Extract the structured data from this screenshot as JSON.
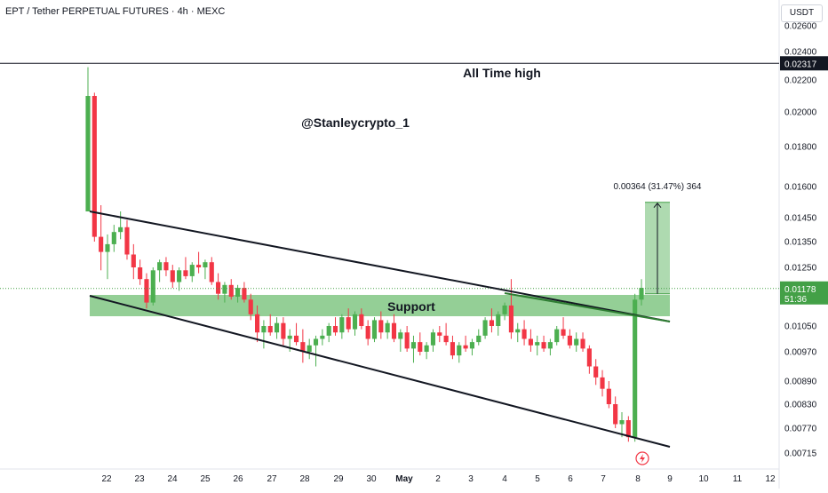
{
  "header": {
    "title": "EPT / Tether PERPETUAL FUTURES · 4h · MEXC",
    "currency": "USDT"
  },
  "chart_data": {
    "type": "candlestick",
    "symbol": "EPT / Tether PERPETUAL FUTURES",
    "interval": "4h",
    "exchange": "MEXC",
    "y_ticks": [
      "0.02600",
      "0.02400",
      "0.02200",
      "0.02000",
      "0.01800",
      "0.01600",
      "0.01450",
      "0.01350",
      "0.01250",
      "0.01050",
      "0.00970",
      "0.00890",
      "0.00830",
      "0.00770",
      "0.00715"
    ],
    "x_ticks": [
      "22",
      "23",
      "24",
      "25",
      "26",
      "27",
      "28",
      "29",
      "30",
      "May",
      "2",
      "3",
      "4",
      "5",
      "6",
      "7",
      "8",
      "9",
      "10",
      "11",
      "12"
    ],
    "all_time_high": "0.02317",
    "last_price": "0.01178",
    "countdown": "51:36",
    "annotations": {
      "ath_label": "All Time high",
      "watermark": "@Stanleycrypto_1",
      "support_label": "Support",
      "measure_label": "0.00364 (31.47%) 364"
    },
    "colors": {
      "up": "#4caf50",
      "down": "#f23645",
      "support_zone": "#81c784",
      "measure_zone": "#a5d6a7",
      "price_label_bg": "#43a047",
      "ath_label_bg": "#131722"
    },
    "candles": [
      [
        0.0148,
        0.0229,
        0.0148,
        0.021
      ],
      [
        0.021,
        0.0212,
        0.0135,
        0.0137
      ],
      [
        0.0137,
        0.0151,
        0.0124,
        0.0131
      ],
      [
        0.0131,
        0.0138,
        0.0121,
        0.0134
      ],
      [
        0.0134,
        0.0142,
        0.0131,
        0.0139
      ],
      [
        0.0139,
        0.0148,
        0.0136,
        0.0141
      ],
      [
        0.0141,
        0.0144,
        0.0128,
        0.013
      ],
      [
        0.013,
        0.0134,
        0.0121,
        0.0125
      ],
      [
        0.0125,
        0.0128,
        0.0119,
        0.0121
      ],
      [
        0.0121,
        0.0123,
        0.0111,
        0.0113
      ],
      [
        0.0113,
        0.0125,
        0.0112,
        0.0124
      ],
      [
        0.0124,
        0.0128,
        0.012,
        0.0127
      ],
      [
        0.0127,
        0.0129,
        0.0122,
        0.0124
      ],
      [
        0.0124,
        0.0126,
        0.0118,
        0.012
      ],
      [
        0.012,
        0.0125,
        0.0117,
        0.0124
      ],
      [
        0.0124,
        0.0129,
        0.0121,
        0.0122
      ],
      [
        0.0122,
        0.0127,
        0.012,
        0.0126
      ],
      [
        0.0126,
        0.0131,
        0.0123,
        0.0125
      ],
      [
        0.0125,
        0.0128,
        0.0121,
        0.0127
      ],
      [
        0.0127,
        0.0129,
        0.0119,
        0.012
      ],
      [
        0.012,
        0.0123,
        0.0114,
        0.0116
      ],
      [
        0.0116,
        0.012,
        0.0113,
        0.0119
      ],
      [
        0.0119,
        0.0121,
        0.0114,
        0.0115
      ],
      [
        0.0115,
        0.0119,
        0.0113,
        0.0118
      ],
      [
        0.0118,
        0.012,
        0.0113,
        0.0114
      ],
      [
        0.0114,
        0.0116,
        0.0107,
        0.0109
      ],
      [
        0.0109,
        0.0112,
        0.01,
        0.0103
      ],
      [
        0.0103,
        0.0107,
        0.0098,
        0.0105
      ],
      [
        0.0105,
        0.0109,
        0.0102,
        0.0103
      ],
      [
        0.0103,
        0.0108,
        0.0101,
        0.0106
      ],
      [
        0.0106,
        0.0108,
        0.0099,
        0.0101
      ],
      [
        0.0101,
        0.0104,
        0.0097,
        0.0102
      ],
      [
        0.0102,
        0.0106,
        0.0099,
        0.01
      ],
      [
        0.01,
        0.0104,
        0.0094,
        0.0097
      ],
      [
        0.0097,
        0.0101,
        0.0095,
        0.0099
      ],
      [
        0.0099,
        0.0102,
        0.0093,
        0.0101
      ],
      [
        0.0101,
        0.0104,
        0.0099,
        0.0102
      ],
      [
        0.0102,
        0.0106,
        0.01,
        0.0105
      ],
      [
        0.0105,
        0.0108,
        0.0102,
        0.0103
      ],
      [
        0.0103,
        0.0109,
        0.0101,
        0.0108
      ],
      [
        0.0108,
        0.0111,
        0.0103,
        0.0104
      ],
      [
        0.0104,
        0.011,
        0.0102,
        0.0109
      ],
      [
        0.0109,
        0.0111,
        0.0104,
        0.0105
      ],
      [
        0.0105,
        0.0107,
        0.0099,
        0.0101
      ],
      [
        0.0101,
        0.0108,
        0.01,
        0.0107
      ],
      [
        0.0107,
        0.011,
        0.0101,
        0.0103
      ],
      [
        0.0103,
        0.0107,
        0.0101,
        0.0106
      ],
      [
        0.0106,
        0.0109,
        0.01,
        0.0101
      ],
      [
        0.0101,
        0.0104,
        0.0097,
        0.0103
      ],
      [
        0.0103,
        0.0105,
        0.0097,
        0.0098
      ],
      [
        0.0098,
        0.0102,
        0.0094,
        0.01
      ],
      [
        0.01,
        0.0103,
        0.0096,
        0.0097
      ],
      [
        0.0097,
        0.01,
        0.0095,
        0.0099
      ],
      [
        0.0099,
        0.0104,
        0.0097,
        0.0103
      ],
      [
        0.0103,
        0.0105,
        0.01,
        0.0102
      ],
      [
        0.0102,
        0.0106,
        0.0099,
        0.01
      ],
      [
        0.01,
        0.0102,
        0.0095,
        0.0096
      ],
      [
        0.0096,
        0.01,
        0.0094,
        0.0099
      ],
      [
        0.0099,
        0.0102,
        0.0097,
        0.0098
      ],
      [
        0.0098,
        0.0101,
        0.0096,
        0.01
      ],
      [
        0.01,
        0.0104,
        0.0099,
        0.0102
      ],
      [
        0.0102,
        0.0108,
        0.0101,
        0.0107
      ],
      [
        0.0107,
        0.0111,
        0.0103,
        0.0105
      ],
      [
        0.0105,
        0.011,
        0.0102,
        0.0109
      ],
      [
        0.0109,
        0.0113,
        0.0107,
        0.0112
      ],
      [
        0.0112,
        0.0121,
        0.0101,
        0.0103
      ],
      [
        0.0103,
        0.0106,
        0.01,
        0.0104
      ],
      [
        0.0104,
        0.0107,
        0.0099,
        0.0101
      ],
      [
        0.0101,
        0.0104,
        0.0097,
        0.0099
      ],
      [
        0.0099,
        0.0102,
        0.0096,
        0.01
      ],
      [
        0.01,
        0.0102,
        0.0097,
        0.0098
      ],
      [
        0.0098,
        0.0101,
        0.0096,
        0.01
      ],
      [
        0.01,
        0.0105,
        0.0099,
        0.0104
      ],
      [
        0.0104,
        0.0108,
        0.0101,
        0.0102
      ],
      [
        0.0102,
        0.0104,
        0.0098,
        0.0099
      ],
      [
        0.0099,
        0.0103,
        0.0097,
        0.0101
      ],
      [
        0.0101,
        0.0103,
        0.0097,
        0.0098
      ],
      [
        0.0098,
        0.0099,
        0.0091,
        0.0093
      ],
      [
        0.0093,
        0.0095,
        0.0088,
        0.009
      ],
      [
        0.009,
        0.0092,
        0.0085,
        0.0087
      ],
      [
        0.0087,
        0.0089,
        0.0082,
        0.0083
      ],
      [
        0.0083,
        0.0085,
        0.0077,
        0.0078
      ],
      [
        0.0078,
        0.0081,
        0.0075,
        0.0079
      ],
      [
        0.0079,
        0.008,
        0.0074,
        0.0075
      ],
      [
        0.0075,
        0.0116,
        0.0074,
        0.0114
      ],
      [
        0.0114,
        0.0121,
        0.0112,
        0.0118
      ]
    ]
  }
}
